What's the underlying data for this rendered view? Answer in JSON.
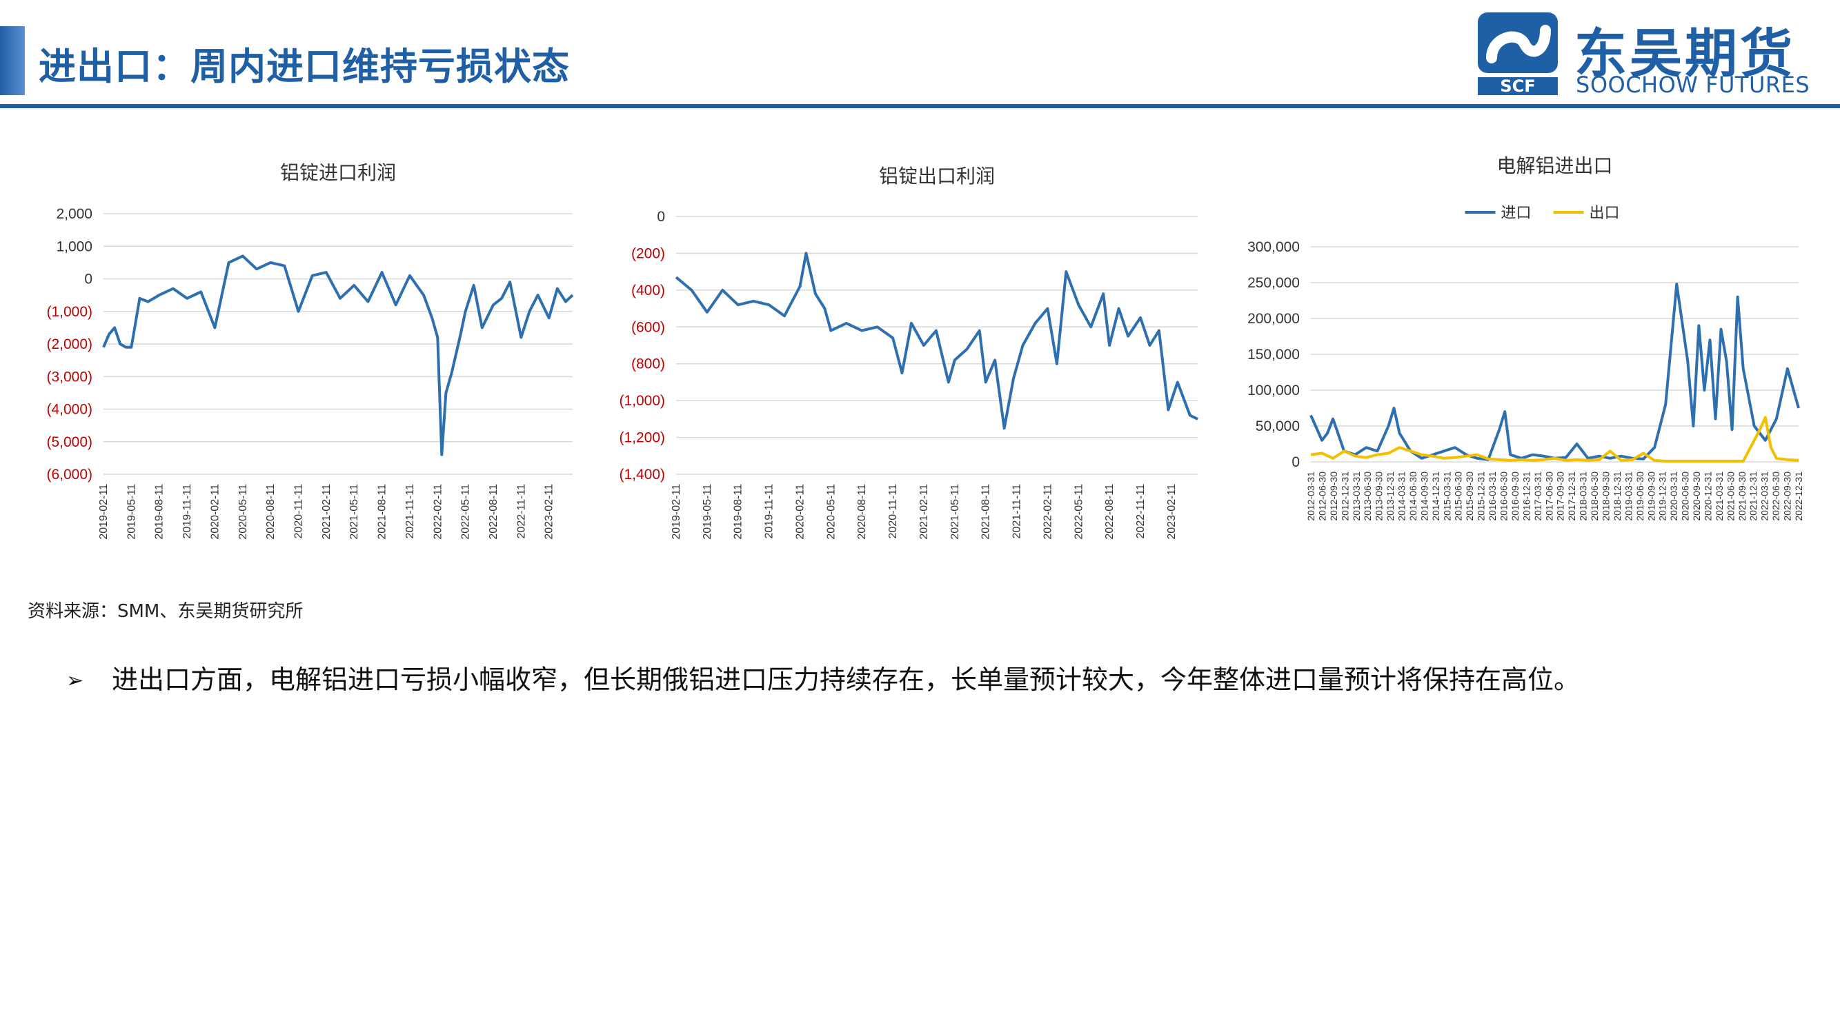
{
  "header": {
    "title": "进出口：周内进口维持亏损状态",
    "logo_cn": "东吴期货",
    "logo_en": "SOOCHOW FUTURES",
    "logo_mark_text": "SCF",
    "accent_color": "#1f5fa6"
  },
  "footer": {
    "source": "资料来源：SMM、东吴期货研究所",
    "bullet_icon": "arrow-bullet-icon",
    "bullet_text": "进出口方面，电解铝进口亏损小幅收窄，但长期俄铝进口压力持续存在，长单量预计较大，今年整体进口量预计将保持在高位。"
  },
  "chart_data": [
    {
      "type": "line",
      "title": "铝锭进口利润",
      "xlabel": "",
      "ylabel": "",
      "ylim": [
        -6000,
        2000
      ],
      "yticks": [
        2000,
        1000,
        0,
        -1000,
        -2000,
        -3000,
        -4000,
        -5000,
        -6000
      ],
      "ytick_labels": [
        "2,000",
        "1,000",
        "0",
        "(1,000)",
        "(2,000)",
        "(3,000)",
        "(4,000)",
        "(5,000)",
        "(6,000)"
      ],
      "negative_label_color": "#c00000",
      "x_tick_labels": [
        "2019-02-11",
        "2019-05-11",
        "2019-08-11",
        "2019-11-11",
        "2020-02-11",
        "2020-05-11",
        "2020-08-11",
        "2020-11-11",
        "2021-02-11",
        "2021-05-11",
        "2021-08-11",
        "2021-11-11",
        "2022-02-11",
        "2022-05-11",
        "2022-08-11",
        "2022-11-11",
        "2023-02-11"
      ],
      "grid": "horizontal",
      "legend": "none",
      "series": [
        {
          "color": "#2e6fb0",
          "x": [
            0,
            0.2,
            0.4,
            0.6,
            0.8,
            1,
            1.3,
            1.6,
            2,
            2.5,
            3,
            3.5,
            4,
            4.5,
            5,
            5.5,
            6,
            6.5,
            7,
            7.5,
            8,
            8.5,
            9,
            9.5,
            10,
            10.5,
            11,
            11.5,
            11.8,
            12,
            12.15,
            12.3,
            12.5,
            12.8,
            13,
            13.3,
            13.6,
            14,
            14.3,
            14.6,
            15,
            15.3,
            15.6,
            16,
            16.3,
            16.6,
            16.85
          ],
          "y": [
            -2100,
            -1700,
            -1500,
            -2000,
            -2100,
            -2100,
            -600,
            -700,
            -500,
            -300,
            -600,
            -400,
            -1500,
            500,
            700,
            300,
            500,
            400,
            -1000,
            100,
            200,
            -600,
            -200,
            -700,
            200,
            -800,
            100,
            -500,
            -1200,
            -1800,
            -5400,
            -3500,
            -2900,
            -1800,
            -1000,
            -200,
            -1500,
            -800,
            -600,
            -100,
            -1800,
            -1000,
            -500,
            -1200,
            -300,
            -700,
            -500
          ]
        }
      ]
    },
    {
      "type": "line",
      "title": "铝锭出口利润",
      "xlabel": "",
      "ylabel": "",
      "ylim": [
        -1400,
        0
      ],
      "yticks": [
        0,
        -200,
        -400,
        -600,
        -800,
        -1000,
        -1200,
        -1400
      ],
      "ytick_labels": [
        "0",
        "(200)",
        "(400)",
        "(600)",
        "(800)",
        "(1,000)",
        "(1,200)",
        "(1,400)"
      ],
      "negative_label_color": "#c00000",
      "x_tick_labels": [
        "2019-02-11",
        "2019-05-11",
        "2019-08-11",
        "2019-11-11",
        "2020-02-11",
        "2020-05-11",
        "2020-08-11",
        "2020-11-11",
        "2021-02-11",
        "2021-05-11",
        "2021-08-11",
        "2021-11-11",
        "2022-02-11",
        "2022-05-11",
        "2022-08-11",
        "2022-11-11",
        "2023-02-11"
      ],
      "grid": "horizontal",
      "legend": "none",
      "series": [
        {
          "color": "#2e6fb0",
          "x": [
            0,
            0.5,
            1,
            1.5,
            2,
            2.5,
            3,
            3.5,
            4,
            4.2,
            4.5,
            4.8,
            5,
            5.5,
            6,
            6.5,
            7,
            7.3,
            7.6,
            8,
            8.4,
            8.8,
            9,
            9.4,
            9.8,
            10,
            10.3,
            10.6,
            10.9,
            11.2,
            11.6,
            12,
            12.3,
            12.6,
            13,
            13.4,
            13.8,
            14,
            14.3,
            14.6,
            15,
            15.3,
            15.6,
            15.9,
            16.2,
            16.6,
            16.85
          ],
          "y": [
            -330,
            -400,
            -520,
            -400,
            -480,
            -460,
            -480,
            -540,
            -380,
            -200,
            -420,
            -500,
            -620,
            -580,
            -620,
            -600,
            -660,
            -850,
            -580,
            -700,
            -620,
            -900,
            -780,
            -720,
            -620,
            -900,
            -780,
            -1150,
            -880,
            -700,
            -580,
            -500,
            -800,
            -300,
            -480,
            -600,
            -420,
            -700,
            -500,
            -650,
            -550,
            -700,
            -620,
            -1050,
            -900,
            -1080,
            -1100
          ]
        }
      ]
    },
    {
      "type": "line",
      "title": "电解铝进出口",
      "xlabel": "",
      "ylabel": "",
      "ylim": [
        0,
        300000
      ],
      "yticks": [
        0,
        50000,
        100000,
        150000,
        200000,
        250000,
        300000
      ],
      "ytick_labels": [
        "0",
        "50,000",
        "100,000",
        "150,000",
        "200,000",
        "250,000",
        "300,000"
      ],
      "x_tick_labels": [
        "2012-03-31",
        "2012-06-30",
        "2012-09-30",
        "2012-12-31",
        "2013-03-31",
        "2013-06-30",
        "2013-09-30",
        "2013-12-31",
        "2014-03-31",
        "2014-06-30",
        "2014-09-30",
        "2014-12-31",
        "2015-03-31",
        "2015-06-30",
        "2015-09-30",
        "2015-12-31",
        "2016-03-31",
        "2016-06-30",
        "2016-09-30",
        "2016-12-31",
        "2017-03-31",
        "2017-06-30",
        "2017-09-30",
        "2017-12-31",
        "2018-03-31",
        "2018-06-30",
        "2018-09-30",
        "2018-12-31",
        "2019-03-31",
        "2019-06-30",
        "2019-09-30",
        "2019-12-31",
        "2020-03-31",
        "2020-06-30",
        "2020-09-30",
        "2020-12-31",
        "2021-03-31",
        "2021-06-30",
        "2021-09-30",
        "2021-12-31",
        "2022-03-31",
        "2022-06-30",
        "2022-09-30",
        "2022-12-31"
      ],
      "grid": "horizontal",
      "legend": "top-center",
      "series": [
        {
          "name": "进口",
          "color": "#2e6fb0",
          "x": [
            0,
            1,
            1.5,
            2,
            3,
            4,
            5,
            6,
            7,
            7.5,
            8,
            9,
            10,
            11,
            12,
            13,
            14,
            15,
            16,
            17,
            17.5,
            18,
            19,
            20,
            21,
            22,
            23,
            24,
            25,
            26,
            27,
            28,
            29,
            30,
            31,
            32,
            33,
            34,
            34.5,
            35,
            35.5,
            36,
            36.5,
            37,
            37.5,
            38,
            38.5,
            39,
            40,
            41,
            42,
            43,
            44
          ],
          "y": [
            65000,
            30000,
            40000,
            60000,
            15000,
            10000,
            20000,
            15000,
            50000,
            75000,
            40000,
            15000,
            5000,
            10000,
            15000,
            20000,
            10000,
            5000,
            3000,
            45000,
            70000,
            10000,
            5000,
            10000,
            8000,
            5000,
            6000,
            25000,
            5000,
            8000,
            5000,
            8000,
            5000,
            4000,
            20000,
            80000,
            248000,
            140000,
            50000,
            190000,
            100000,
            170000,
            60000,
            185000,
            140000,
            45000,
            230000,
            130000,
            50000,
            30000,
            60000,
            130000,
            75000
          ]
        },
        {
          "name": "出口",
          "color": "#f2c000",
          "x": [
            0,
            1,
            2,
            3,
            4,
            5,
            6,
            7,
            8,
            9,
            10,
            11,
            12,
            13,
            14,
            15,
            16,
            17,
            18,
            19,
            20,
            21,
            22,
            23,
            24,
            25,
            26,
            27,
            28,
            29,
            30,
            31,
            32,
            33,
            34,
            35,
            36,
            37,
            38,
            39,
            40,
            40.5,
            41,
            41.5,
            42,
            43,
            44
          ],
          "y": [
            10000,
            12000,
            5000,
            15000,
            8000,
            6000,
            10000,
            12000,
            20000,
            15000,
            10000,
            8000,
            5000,
            6000,
            8000,
            10000,
            4000,
            3000,
            2000,
            3000,
            2000,
            3000,
            5000,
            2000,
            3000,
            2000,
            3000,
            15000,
            2000,
            3000,
            12000,
            2000,
            1000,
            1000,
            1000,
            1000,
            1000,
            1000,
            1000,
            1000,
            30000,
            45000,
            62000,
            20000,
            5000,
            3000,
            2000
          ]
        }
      ]
    }
  ]
}
